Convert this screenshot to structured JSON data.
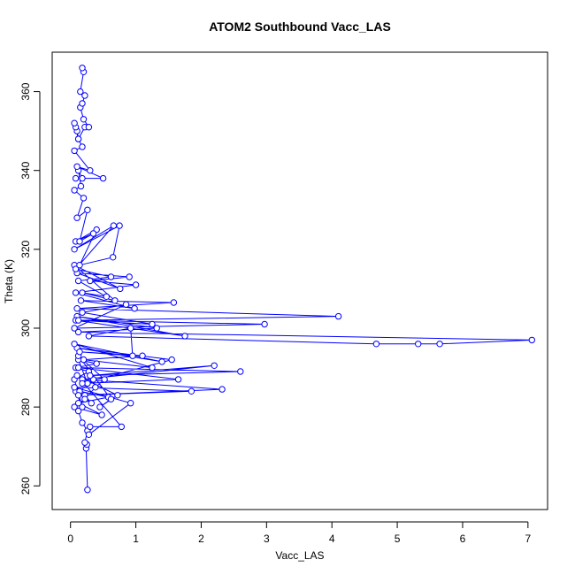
{
  "chart_data": {
    "type": "line",
    "title": "ATOM2 Southbound Vacc_LAS",
    "xlabel": "Vacc_LAS",
    "ylabel": "Theta (K)",
    "xlim": [
      -0.28,
      7.3
    ],
    "ylim": [
      254,
      370
    ],
    "xticks": [
      "0",
      "1",
      "2",
      "3",
      "4",
      "5",
      "6",
      "7"
    ],
    "yticks": [
      "260",
      "280",
      "300",
      "320",
      "340",
      "360"
    ],
    "grid": false,
    "legend": "none",
    "color": "#0000FF",
    "series": [
      {
        "markers": "open-circle",
        "x": [
          0.26,
          0.24,
          0.25,
          0.22,
          0.26,
          0.18,
          0.12,
          0.22,
          0.32,
          0.08,
          0.18,
          0.06,
          0.28,
          0.08,
          0.4,
          0.12,
          0.26,
          0.35,
          0.14,
          0.58,
          0.12,
          0.48,
          0.06,
          0.22,
          0.38,
          0.52,
          0.12,
          0.62,
          0.45,
          0.72,
          0.1,
          0.78,
          0.3,
          0.28,
          0.92,
          0.06,
          1.85,
          0.12,
          2.32,
          0.18,
          2.2,
          0.3,
          2.6,
          0.12,
          1.65,
          0.18,
          1.55,
          0.1,
          1.4,
          0.06,
          1.25,
          0.2,
          1.1,
          0.14,
          0.95,
          0.92,
          0.28,
          4.68,
          5.32,
          5.65,
          7.06,
          0.12,
          1.32,
          0.1,
          1.75,
          0.08,
          1.25,
          0.18,
          0.85,
          0.06,
          2.97,
          0.12,
          4.1,
          0.1,
          1.58,
          0.16,
          0.98,
          0.08,
          1.0,
          0.3,
          0.9,
          0.1,
          0.76,
          0.06,
          0.68,
          0.18,
          0.55,
          0.12,
          0.62,
          0.08,
          0.66,
          0.06,
          0.75,
          0.65,
          0.14,
          0.4,
          0.08,
          0.35,
          0.14,
          0.26,
          0.1,
          0.2,
          0.06,
          0.16,
          0.12,
          0.18,
          0.08,
          0.5,
          0.1,
          0.3,
          0.06,
          0.18,
          0.12,
          0.1,
          0.08,
          0.06,
          0.12,
          0.22,
          0.28,
          0.2,
          0.15,
          0.18,
          0.22,
          0.15,
          0.2,
          0.18
        ],
        "y": [
          259,
          269.5,
          270.5,
          271,
          274,
          276,
          279,
          283,
          281,
          284,
          280,
          287,
          289,
          290,
          291,
          292,
          286,
          287,
          284,
          282.5,
          281,
          278,
          280,
          282,
          285,
          287,
          293,
          282,
          280,
          283,
          288,
          275,
          275,
          273,
          281,
          285,
          284,
          283,
          284.5,
          287,
          290.5,
          288,
          289,
          290,
          287,
          286,
          292,
          295,
          291.5,
          296,
          290,
          292,
          293,
          294,
          293,
          300,
          298,
          296,
          296,
          296,
          297,
          299,
          300,
          303,
          298,
          302,
          301,
          304,
          306,
          300,
          301,
          302,
          303,
          305,
          306.5,
          307,
          305,
          309,
          311,
          312,
          313,
          314,
          310,
          316,
          307,
          309,
          308,
          312,
          313,
          315,
          326,
          320,
          326,
          318,
          316,
          325,
          322,
          324,
          322,
          330,
          328,
          333,
          335,
          336,
          340,
          338,
          338,
          338,
          341,
          340,
          345,
          346,
          348,
          350,
          351,
          352,
          348,
          351,
          351,
          353,
          356,
          357,
          359,
          360,
          365,
          366
        ]
      }
    ]
  }
}
